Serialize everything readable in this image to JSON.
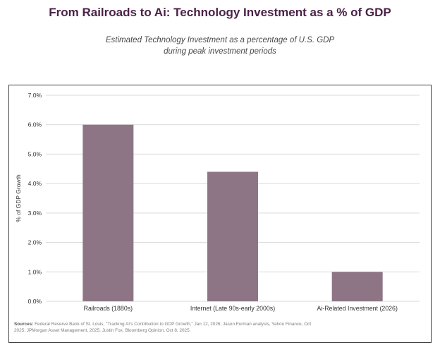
{
  "header": {
    "title": "From Railroads to Ai: Technology Investment as a % of GDP",
    "subtitle_line1": "Estimated Technology Investment as a percentage of U.S. GDP",
    "subtitle_line2": "during peak investment periods"
  },
  "chart_data": {
    "type": "bar",
    "title": "From Railroads to Ai: Technology Investment as a % of GDP",
    "subtitle": "Estimated Technology Investment as a percentage of U.S. GDP during peak investment periods",
    "categories": [
      "Railroads (1880s)",
      "Internet (Late 90s-early 2000s)",
      "Ai-Related Investment (2026)"
    ],
    "values": [
      6.0,
      4.4,
      1.0
    ],
    "xlabel": "",
    "ylabel": "% of GDP Growth",
    "ylim": [
      0,
      7
    ],
    "yticks": [
      0,
      1,
      2,
      3,
      4,
      5,
      6,
      7
    ],
    "ytick_labels": [
      "0.0%",
      "1.0%",
      "2.0%",
      "3.0%",
      "4.0%",
      "5.0%",
      "6.0%",
      "7.0%"
    ],
    "grid": true,
    "bar_color": "#8e7585",
    "grid_color": "#d9d9d9"
  },
  "sources": {
    "label": "Sources:",
    "text": "Federal Reserve Bank of St. Louis, \"Tracking AI's Contribution to GDP Growth,\" Jan 12, 2026; Jason Furman analysis, Yahoo Finance, Oct 2025; JPMorgan Asset Management, 2025; Justin Fox, Bloomberg Opinion, Oct 8, 2025."
  },
  "colors": {
    "title": "#4a2147",
    "bar": "#8e7585"
  }
}
